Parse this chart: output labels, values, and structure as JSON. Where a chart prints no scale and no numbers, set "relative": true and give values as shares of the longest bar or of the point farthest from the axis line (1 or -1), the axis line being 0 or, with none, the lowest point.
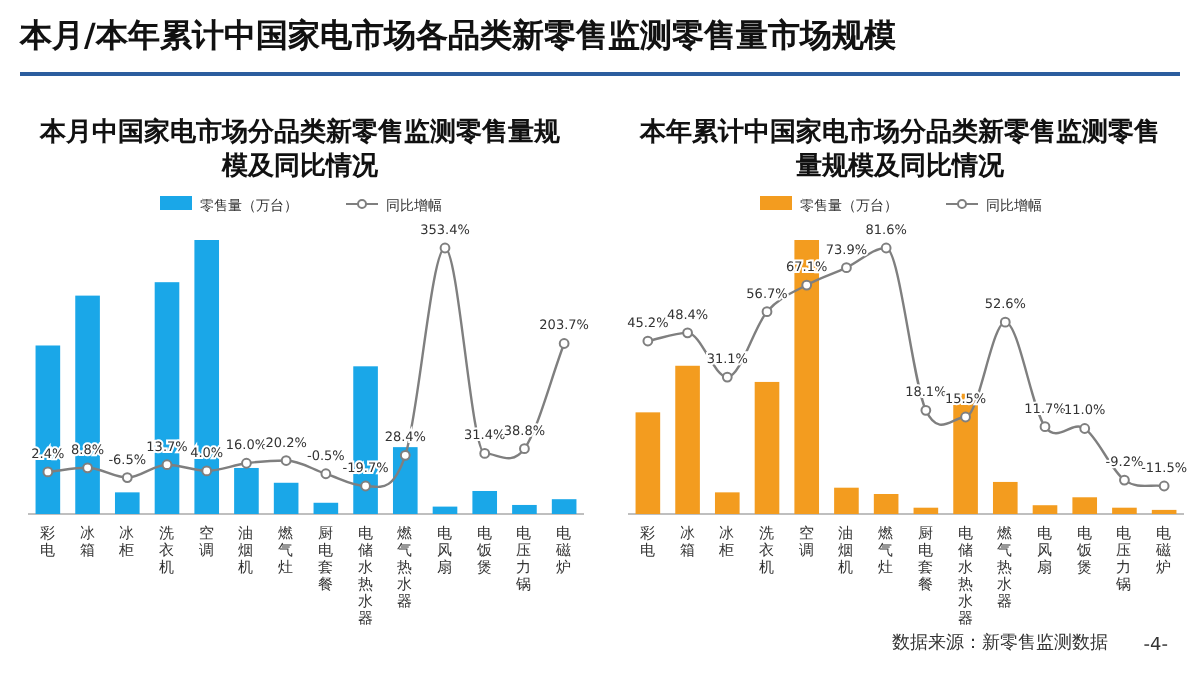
{
  "chart_data": [
    {
      "type": "other",
      "title": "本月/本年累计中国家电市场各品类新零售监测零售量市场规模",
      "annotations": [
        "数据来源：新零售监测数据",
        "-4-"
      ]
    },
    {
      "type": "bar",
      "title": "本月中国家电市场分品类新零售监测零售量规模及同比情况",
      "relative": true,
      "legend": "top",
      "categories": [
        "彩电",
        "冰箱",
        "冰柜",
        "洗衣机",
        "空调",
        "油烟机",
        "燃气灶",
        "厨电套餐",
        "电储水热水器",
        "燃气热水器",
        "电风扇",
        "电饭煲",
        "电压力锅",
        "电磁炉"
      ],
      "series": [
        {
          "name": "零售量（万台）",
          "color": "#1aa7e8",
          "values": [
            0.615,
            0.797,
            0.079,
            0.846,
            1,
            0.168,
            0.114,
            0.041,
            0.539,
            0.244,
            0.027,
            0.084,
            0.033,
            0.054
          ]
        }
      ]
    },
    {
      "type": "line",
      "legend": "top",
      "marker": "circle",
      "tick_labels": false,
      "categories": [
        "彩电",
        "冰箱",
        "冰柜",
        "洗衣机",
        "空调",
        "油烟机",
        "燃气灶",
        "厨电套餐",
        "电储水热水器",
        "燃气热水器",
        "电风扇",
        "电饭煲",
        "电压力锅",
        "电磁炉"
      ],
      "series": [
        {
          "name": "同比增幅",
          "color": "#7f7f7f",
          "values": [
            2.4,
            8.8,
            -6.5,
            13.7,
            4.0,
            16.0,
            20.2,
            -0.5,
            -19.7,
            28.4,
            353.4,
            31.4,
            38.8,
            203.7
          ],
          "value_labels": [
            "2.4%",
            "8.8%",
            "-6.5%",
            "13.7%",
            "4.0%",
            "16.0%",
            "20.2%",
            "-0.5%",
            "-19.7%",
            "28.4%",
            "353.4%",
            "31.4%",
            "38.8%",
            "203.7%"
          ]
        }
      ]
    },
    {
      "type": "bar",
      "title": "本年累计中国家电市场分品类新零售监测零售量规模及同比情况",
      "relative": true,
      "legend": "top",
      "categories": [
        "彩电",
        "冰箱",
        "冰柜",
        "洗衣机",
        "空调",
        "油烟机",
        "燃气灶",
        "厨电套餐",
        "电储水热水器",
        "燃气热水器",
        "电风扇",
        "电饭煲",
        "电压力锅",
        "电磁炉"
      ],
      "series": [
        {
          "name": "零售量（万台）",
          "color": "#f39c1f",
          "values": [
            0.371,
            0.541,
            0.079,
            0.482,
            1,
            0.096,
            0.073,
            0.023,
            0.439,
            0.117,
            0.032,
            0.061,
            0.023,
            0.015
          ]
        }
      ]
    },
    {
      "type": "line",
      "legend": "top",
      "marker": "circle",
      "tick_labels": false,
      "categories": [
        "彩电",
        "冰箱",
        "冰柜",
        "洗衣机",
        "空调",
        "油烟机",
        "燃气灶",
        "厨电套餐",
        "电储水热水器",
        "燃气热水器",
        "电风扇",
        "电饭煲",
        "电压力锅",
        "电磁炉"
      ],
      "series": [
        {
          "name": "同比增幅",
          "color": "#7f7f7f",
          "values": [
            45.2,
            48.4,
            31.1,
            56.7,
            67.1,
            73.9,
            81.6,
            18.1,
            15.5,
            52.6,
            11.7,
            11.0,
            -9.2,
            -11.5
          ],
          "value_labels": [
            "45.2%",
            "48.4%",
            "31.1%",
            "56.7%",
            "67.1%",
            "73.9%",
            "81.6%",
            "18.1%",
            "15.5%",
            "52.6%",
            "11.7%",
            "11.0%",
            "-9.2%",
            "-11.5%"
          ]
        }
      ]
    }
  ]
}
